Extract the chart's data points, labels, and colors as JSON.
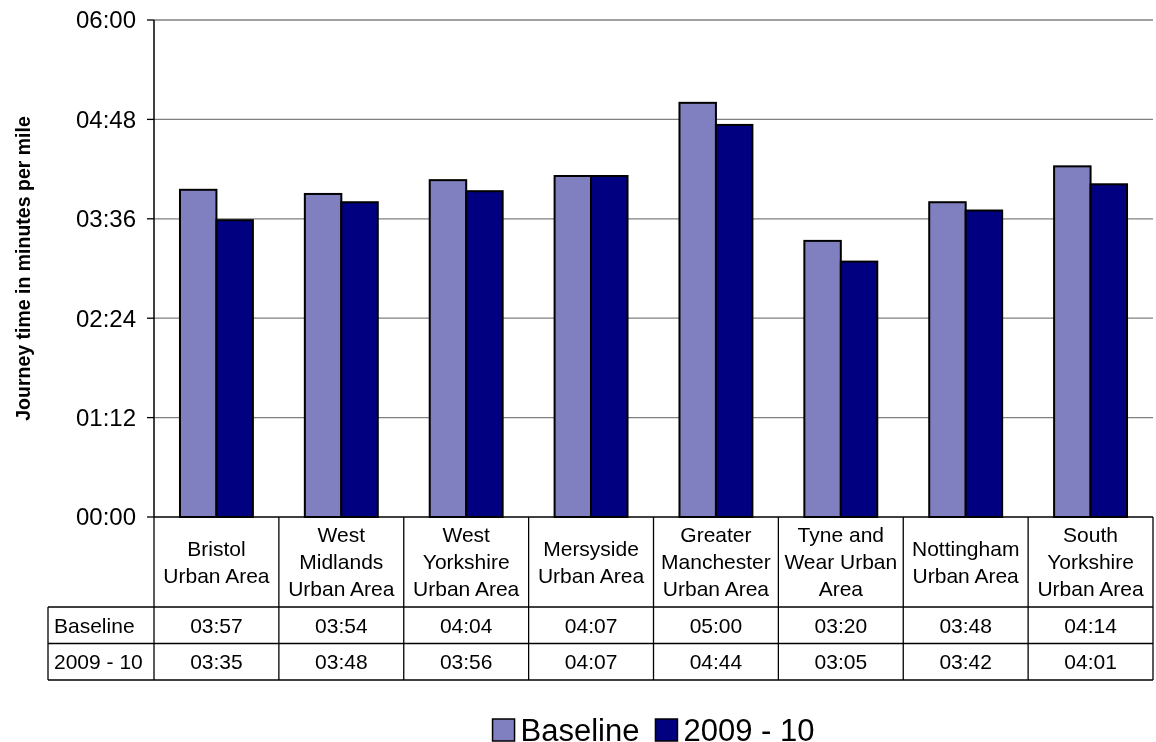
{
  "chart_data": {
    "type": "bar",
    "ylabel": "Journey time in minutes per mile",
    "categories": [
      "Bristol Urban Area",
      "West Midlands Urban Area",
      "West Yorkshire Urban Area",
      "Mersyside Urban Area",
      "Greater Manchester Urban Area",
      "Tyne and Wear Urban Area",
      "Nottingham Urban Area",
      "South Yorkshire Urban Area"
    ],
    "series": [
      {
        "name": "Baseline",
        "color": "#8080c0",
        "values": [
          3.95,
          3.9,
          4.0667,
          4.1167,
          5,
          3.3333,
          3.8,
          4.2333
        ],
        "value_labels": [
          "03:57",
          "03:54",
          "04:04",
          "04:07",
          "05:00",
          "03:20",
          "03:48",
          "04:14"
        ]
      },
      {
        "name": "2009 - 10",
        "color": "#000080",
        "values": [
          3.5833,
          3.8,
          3.9333,
          4.1167,
          4.7333,
          3.0833,
          3.7,
          4.0167
        ],
        "value_labels": [
          "03:35",
          "03:48",
          "03:56",
          "04:07",
          "04:44",
          "03:05",
          "03:42",
          "04:01"
        ]
      }
    ],
    "ylim": [
      0,
      6
    ],
    "yticks": [
      {
        "value": 0,
        "label": "00:00"
      },
      {
        "value": 1.2,
        "label": "01:12"
      },
      {
        "value": 2.4,
        "label": "02:24"
      },
      {
        "value": 3.6,
        "label": "03:36"
      },
      {
        "value": 4.8,
        "label": "04:48"
      },
      {
        "value": 6,
        "label": "06:00"
      }
    ],
    "grid": "y",
    "legend": "bottom"
  }
}
